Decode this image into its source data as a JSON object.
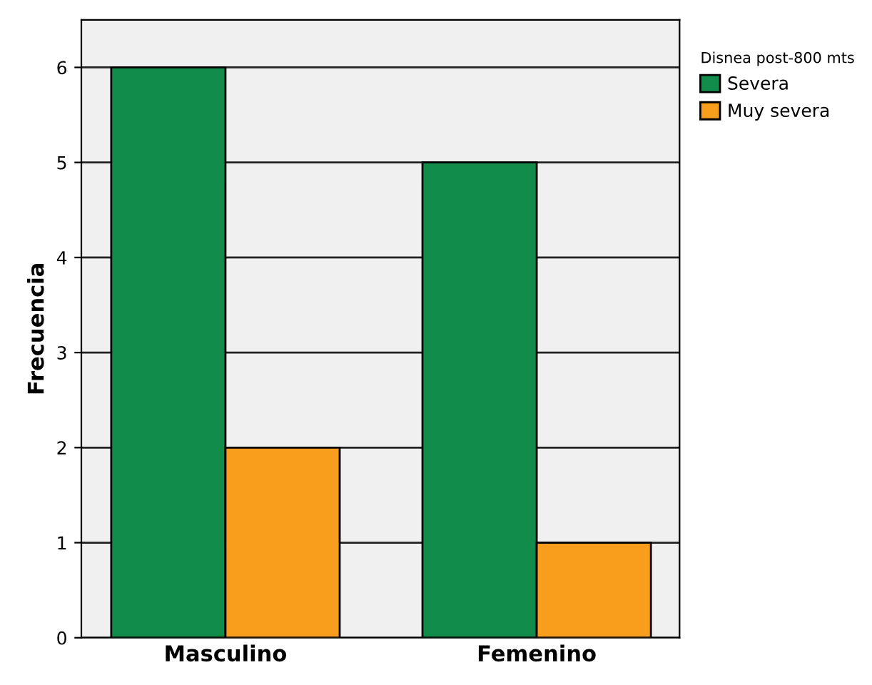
{
  "chart_data": {
    "type": "bar",
    "ylabel": "Frecuencia",
    "legend_title": "Disnea post-800 mts",
    "categories": [
      "Masculino",
      "Femenino"
    ],
    "series": [
      {
        "name": "Severa",
        "color": "#128c4a",
        "values": [
          6,
          5
        ]
      },
      {
        "name": "Muy severa",
        "color": "#f99d1c",
        "values": [
          2,
          1
        ]
      }
    ],
    "ylim": [
      0,
      6.5
    ],
    "yticks": [
      0,
      1,
      2,
      3,
      4,
      5,
      6
    ],
    "grid": "y",
    "legend": "top right"
  }
}
